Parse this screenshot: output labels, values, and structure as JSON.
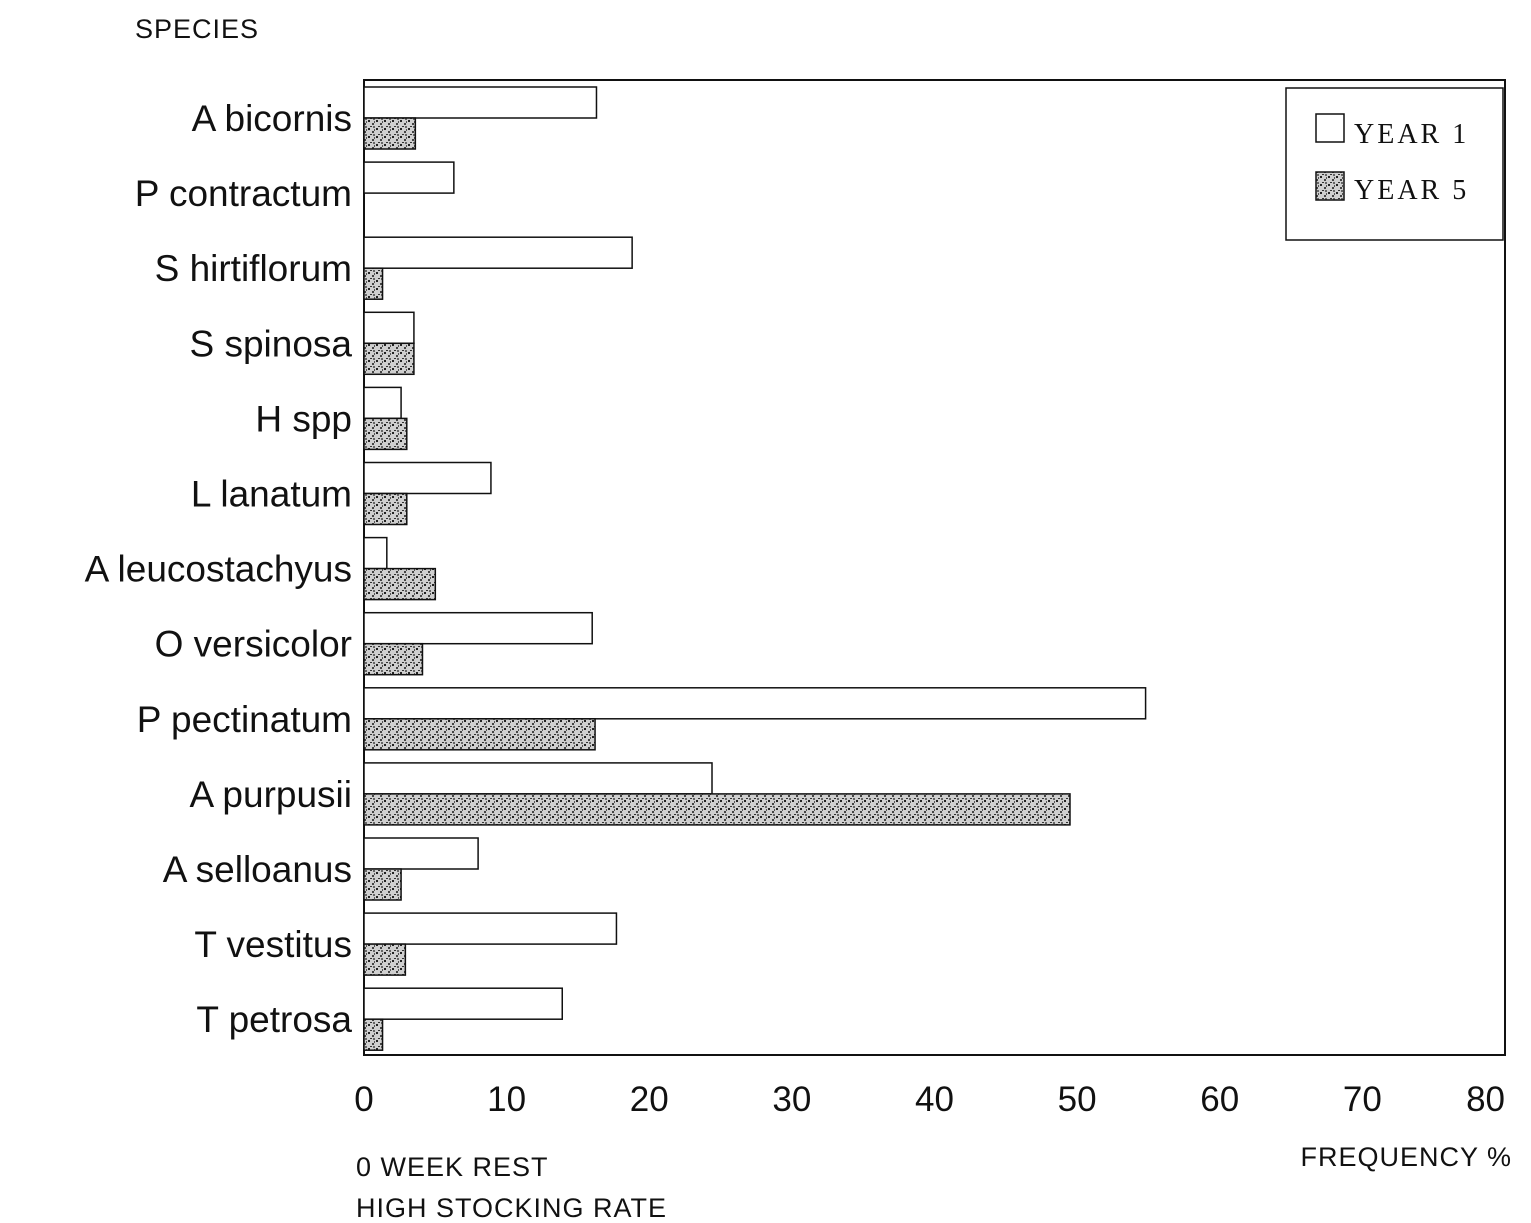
{
  "chart_data": {
    "type": "bar",
    "orientation": "horizontal",
    "title": "SPECIES",
    "xlabel": "FREQUENCY %",
    "note_lines": [
      "0 WEEK REST",
      "HIGH STOCKING RATE"
    ],
    "xlim": [
      0,
      80
    ],
    "x_ticks": [
      "0",
      "10",
      "20",
      "30",
      "40",
      "50",
      "60",
      "70",
      "80"
    ],
    "categories": [
      "A bicornis",
      "P contractum",
      "S hirtiflorum",
      "S spinosa",
      "H spp",
      "L lanatum",
      "A leucostachyus",
      "O versicolor",
      "P pectinatum",
      "A purpusii",
      "A selloanus",
      "T vestitus",
      "T petrosa"
    ],
    "series": [
      {
        "name": "YEAR 1",
        "fill": "white",
        "values": [
          16.3,
          6.3,
          18.8,
          3.5,
          2.6,
          8.9,
          1.6,
          16.0,
          54.8,
          24.4,
          8.0,
          17.7,
          13.9
        ]
      },
      {
        "name": "YEAR 5",
        "fill": "stippled",
        "values": [
          3.6,
          0.0,
          1.3,
          3.5,
          3.0,
          3.0,
          5.0,
          4.1,
          16.2,
          49.5,
          2.6,
          2.9,
          1.3
        ]
      }
    ],
    "legend_position": "top-right",
    "grid": false,
    "colors": {
      "outline": "#111111",
      "year1_fill": "#ffffff",
      "year5_fill": "#bdbdbd"
    }
  }
}
